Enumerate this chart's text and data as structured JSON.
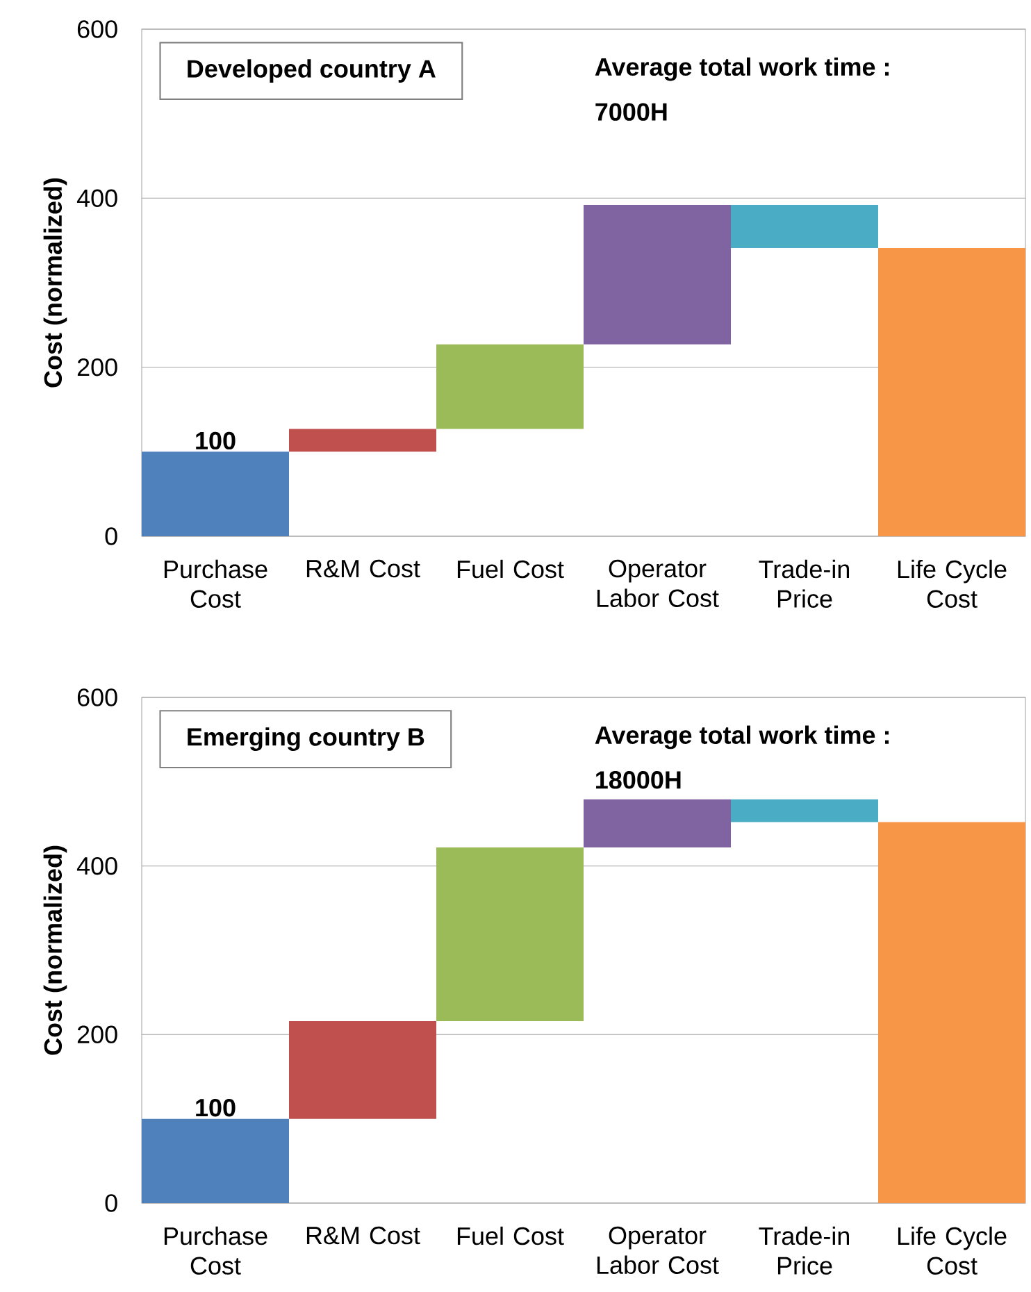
{
  "chart_data": [
    {
      "type": "bar",
      "title": "Developed country A",
      "ylabel": "Cost (normalized)",
      "annotations": [
        "Average total work time :",
        "7000H"
      ],
      "categories": [
        "Purchase Cost",
        "R&M Cost",
        "Fuel Cost",
        "Operator Labor Cost",
        "Trade-in Price",
        "Life Cycle Cost"
      ],
      "values": [
        100,
        27,
        100,
        165,
        -51,
        341
      ],
      "base": [
        0,
        100,
        127,
        227,
        392,
        0
      ],
      "value_labels": [
        "100",
        null,
        null,
        null,
        null,
        null
      ],
      "colors": [
        "#4f81bd",
        "#c0504d",
        "#9bbb59",
        "#8064a2",
        "#4bacc6",
        "#f79646"
      ],
      "ylim": [
        0,
        600
      ],
      "yticks": [
        0,
        200,
        400,
        600
      ],
      "grid": "y"
    },
    {
      "type": "bar",
      "title": "Emerging country B",
      "ylabel": "Cost (normalized)",
      "annotations": [
        "Average total work time :",
        "18000H"
      ],
      "categories": [
        "Purchase Cost",
        "R&M Cost",
        "Fuel Cost",
        "Operator Labor Cost",
        "Trade-in Price",
        "Life Cycle Cost"
      ],
      "values": [
        100,
        116,
        206,
        57,
        -27,
        452
      ],
      "base": [
        0,
        100,
        216,
        422,
        479,
        0
      ],
      "value_labels": [
        "100",
        null,
        null,
        null,
        null,
        null
      ],
      "colors": [
        "#4f81bd",
        "#c0504d",
        "#9bbb59",
        "#8064a2",
        "#4bacc6",
        "#f79646"
      ],
      "ylim": [
        0,
        600
      ],
      "yticks": [
        0,
        200,
        400,
        600
      ],
      "grid": "y"
    }
  ]
}
